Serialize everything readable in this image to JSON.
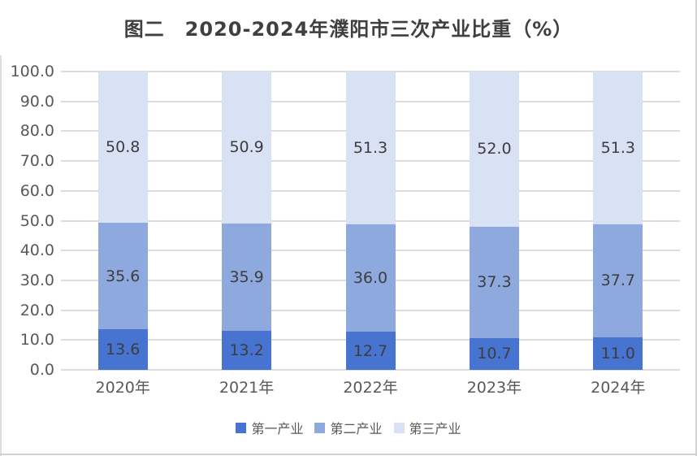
{
  "title": "图二　2020-2024年濮阳市三次产业比重（%）",
  "chart_data": {
    "type": "bar",
    "stacked": true,
    "title": "图二　2020-2024年濮阳市三次产业比重（%）",
    "categories": [
      "2020年",
      "2021年",
      "2022年",
      "2023年",
      "2024年"
    ],
    "series": [
      {
        "name": "第一产业",
        "color": "#4674d0",
        "values": [
          13.6,
          13.2,
          12.7,
          10.7,
          11.0
        ]
      },
      {
        "name": "第二产业",
        "color": "#8ea9de",
        "values": [
          35.6,
          35.9,
          36.0,
          37.3,
          37.7
        ]
      },
      {
        "name": "第三产业",
        "color": "#d9e1f5",
        "values": [
          50.8,
          50.9,
          51.3,
          52.0,
          51.3
        ]
      }
    ],
    "ylim": [
      0,
      100
    ],
    "ytick_step": 10,
    "ytick_labels": [
      "0.0",
      "10.0",
      "20.0",
      "30.0",
      "40.0",
      "50.0",
      "60.0",
      "70.0",
      "80.0",
      "90.0",
      "100.0"
    ],
    "grid": true,
    "gridline_color": "#dcdcdc",
    "data_label_decimals": 1,
    "legend_position": "bottom"
  },
  "colors": {
    "title_text": "#3f3f3f",
    "axis_text": "#595959",
    "data_label_text": "#3d3d3d",
    "background": "#ffffff",
    "window_border": "#d4d4d4"
  }
}
